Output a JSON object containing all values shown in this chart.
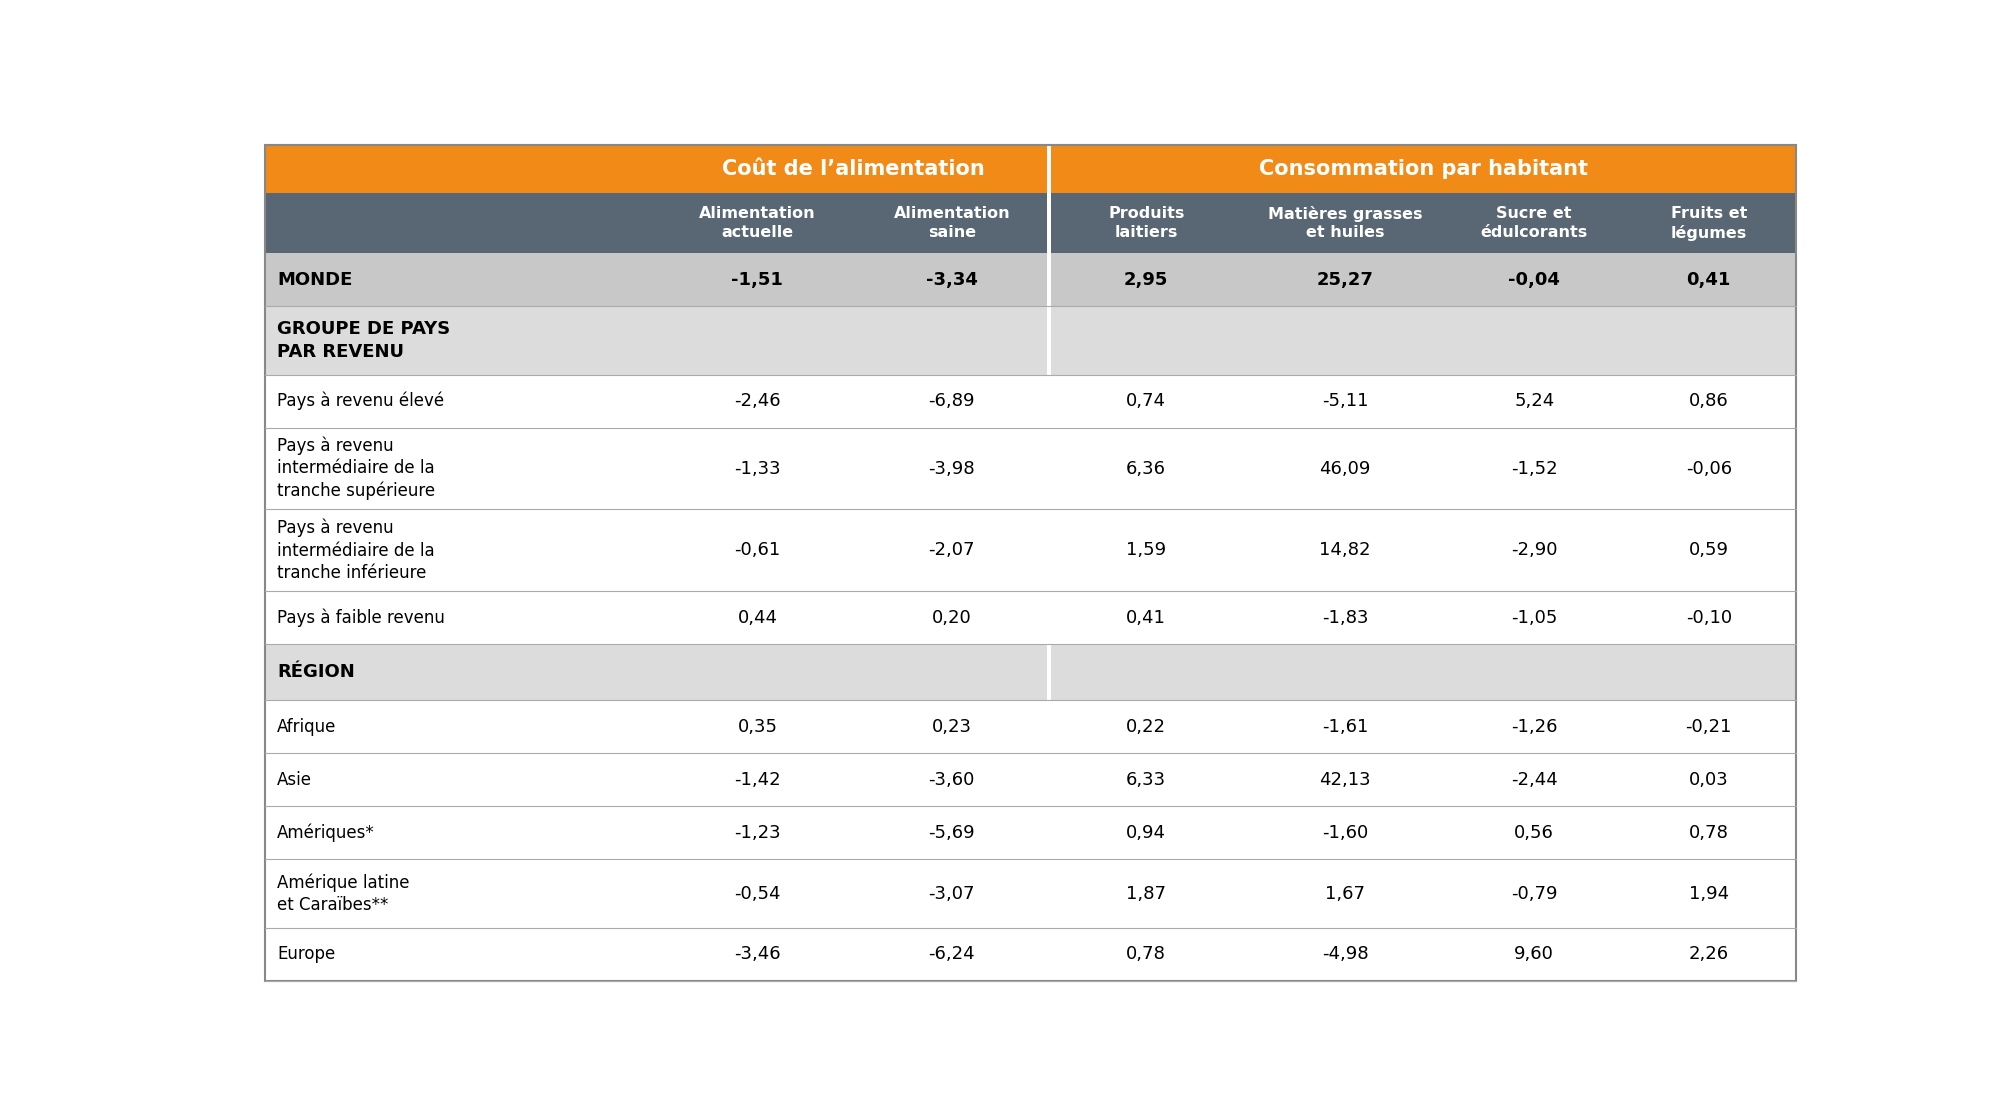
{
  "orange_color": "#F28A17",
  "sub_header_bg": "#596673",
  "sub_header_text_color": "#FFFFFF",
  "world_bg": "#C8C8C8",
  "section_bg": "#DCDCDC",
  "data_bg": "#FFFFFF",
  "border_color": "#AAAAAA",
  "divider_color": "#FFFFFF",
  "col_header_top": [
    {
      "text": "Coût de l’alimentation",
      "span": [
        1,
        2
      ]
    },
    {
      "text": "Consommation par habitant",
      "span": [
        3,
        6
      ]
    }
  ],
  "col_header_sub": [
    "Alimentation\nactuelle",
    "Alimentation\nsaine",
    "Produits\nlaitiers",
    "Matières grasses\net huiles",
    "Sucre et\nédulcorants",
    "Fruits et\nlégumes"
  ],
  "rows": [
    {
      "label": "MONDE",
      "values": [
        "-1,51",
        "-3,34",
        "2,95",
        "25,27",
        "-0,04",
        "0,41"
      ],
      "bg": "#C8C8C8",
      "bold": true,
      "is_section": false,
      "multiline": 1
    },
    {
      "label": "GROUPE DE PAYS\nPAR REVENU",
      "values": [
        "",
        "",
        "",
        "",
        "",
        ""
      ],
      "bg": "#DCDCDC",
      "bold": true,
      "is_section": true,
      "multiline": 2
    },
    {
      "label": "Pays à revenu élevé",
      "values": [
        "-2,46",
        "-6,89",
        "0,74",
        "-5,11",
        "5,24",
        "0,86"
      ],
      "bg": "#FFFFFF",
      "bold": false,
      "is_section": false,
      "multiline": 1
    },
    {
      "label": "Pays à revenu\nintermdiaire de la\ntranche supérieure",
      "values": [
        "-1,33",
        "-3,98",
        "6,36",
        "46,09",
        "-1,52",
        "-0,06"
      ],
      "bg": "#FFFFFF",
      "bold": false,
      "is_section": false,
      "multiline": 3
    },
    {
      "label": "Pays à revenu\nintermdiaire de la\ntranche inférieure",
      "values": [
        "-0,61",
        "-2,07",
        "1,59",
        "14,82",
        "-2,90",
        "0,59"
      ],
      "bg": "#FFFFFF",
      "bold": false,
      "is_section": false,
      "multiline": 3
    },
    {
      "label": "Pays à faible revenu",
      "values": [
        "0,44",
        "0,20",
        "0,41",
        "-1,83",
        "-1,05",
        "-0,10"
      ],
      "bg": "#FFFFFF",
      "bold": false,
      "is_section": false,
      "multiline": 1
    },
    {
      "label": "RÉGION",
      "values": [
        "",
        "",
        "",
        "",
        "",
        ""
      ],
      "bg": "#DCDCDC",
      "bold": true,
      "is_section": true,
      "multiline": 1
    },
    {
      "label": "Afrique",
      "values": [
        "0,35",
        "0,23",
        "0,22",
        "-1,61",
        "-1,26",
        "-0,21"
      ],
      "bg": "#FFFFFF",
      "bold": false,
      "is_section": false,
      "multiline": 1
    },
    {
      "label": "Asie",
      "values": [
        "-1,42",
        "-3,60",
        "6,33",
        "42,13",
        "-2,44",
        "0,03"
      ],
      "bg": "#FFFFFF",
      "bold": false,
      "is_section": false,
      "multiline": 1
    },
    {
      "label": "Amériques*",
      "values": [
        "-1,23",
        "-5,69",
        "0,94",
        "-1,60",
        "0,56",
        "0,78"
      ],
      "bg": "#FFFFFF",
      "bold": false,
      "is_section": false,
      "multiline": 1
    },
    {
      "label": "Amérique latine\net Caraïbes**",
      "values": [
        "-0,54",
        "-3,07",
        "1,87",
        "1,67",
        "-0,79",
        "1,94"
      ],
      "bg": "#FFFFFF",
      "bold": false,
      "is_section": false,
      "multiline": 2
    },
    {
      "label": "Europe",
      "values": [
        "-3,46",
        "-6,24",
        "0,78",
        "-4,98",
        "9,60",
        "2,26"
      ],
      "bg": "#FFFFFF",
      "bold": false,
      "is_section": false,
      "multiline": 1
    }
  ]
}
